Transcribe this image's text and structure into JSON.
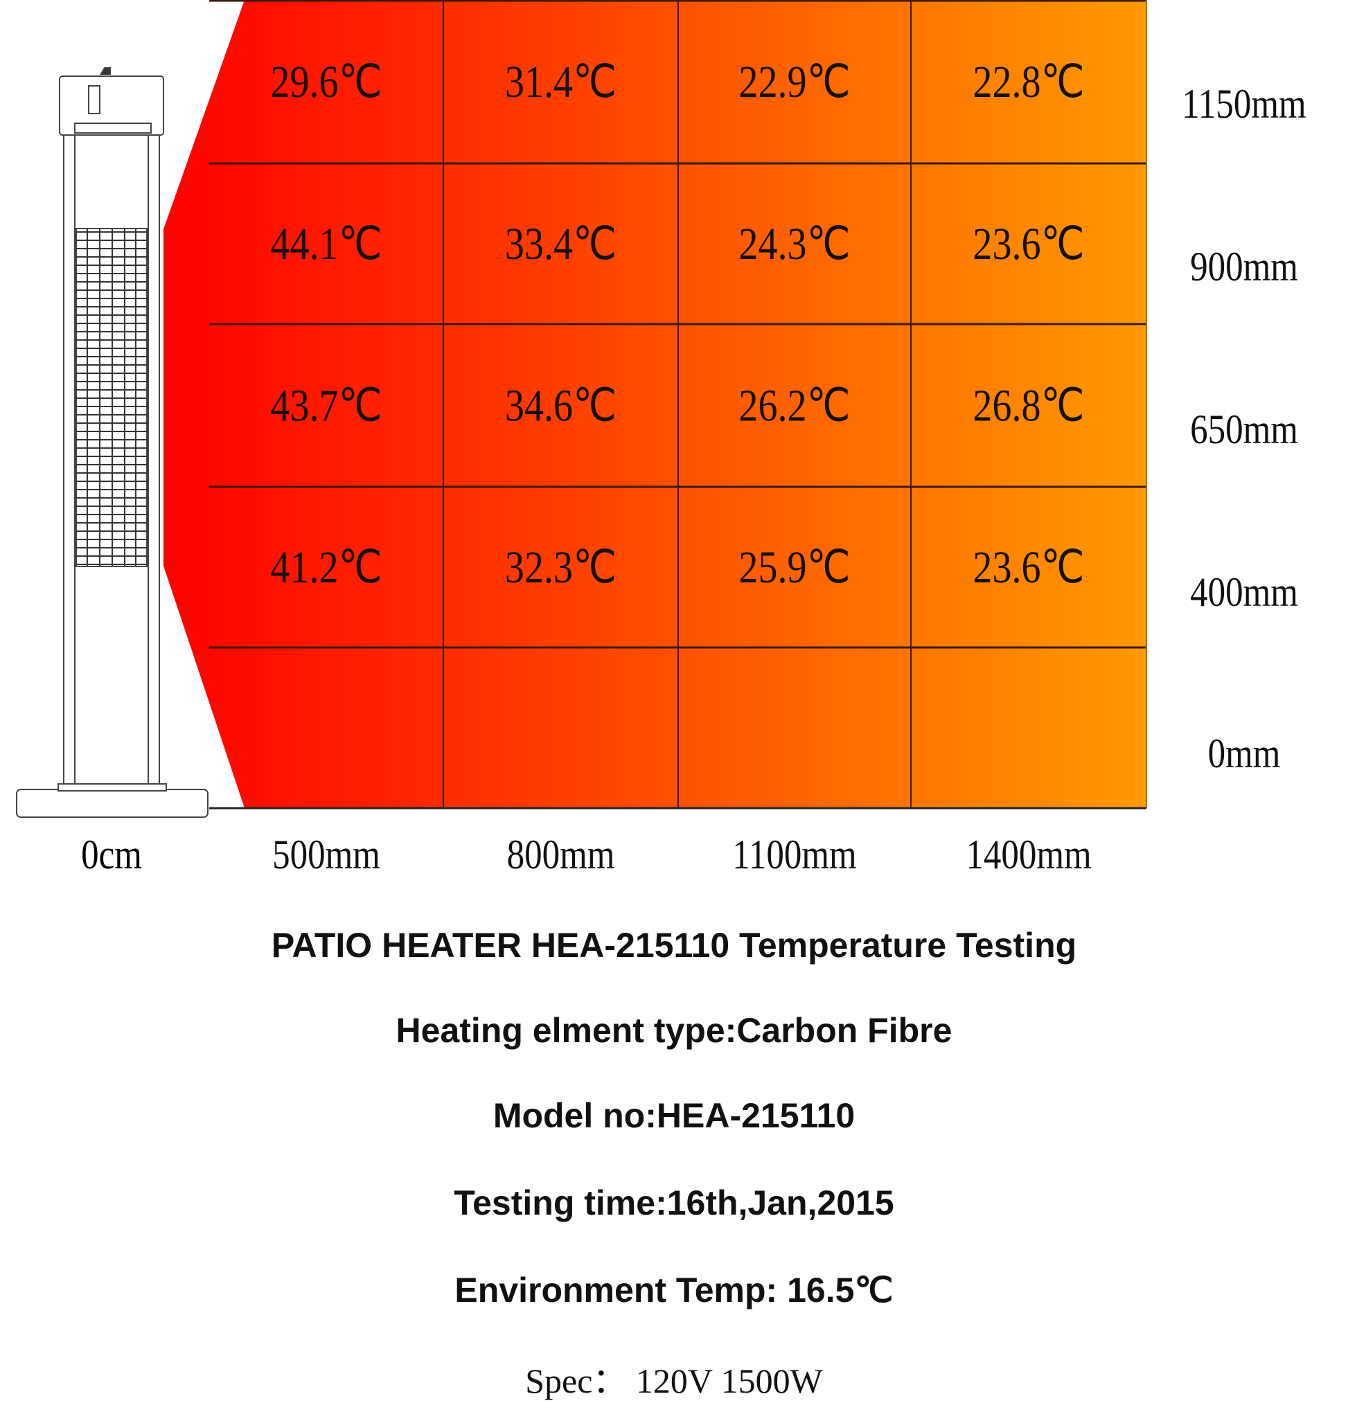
{
  "chart_data": {
    "type": "heatmap",
    "title": "PATIO HEATER HEA-215110 Temperature Testing",
    "x_origin_label": "0cm",
    "x_categories": [
      "500mm",
      "800mm",
      "1100mm",
      "1400mm"
    ],
    "y_categories": [
      "1150mm",
      "900mm",
      "650mm",
      "400mm",
      "0mm"
    ],
    "unit": "℃",
    "values": [
      [
        "29.6℃",
        "31.4℃",
        "22.9℃",
        "22.8℃"
      ],
      [
        "44.1℃",
        "33.4℃",
        "24.3℃",
        "23.6℃"
      ],
      [
        "43.7℃",
        "34.6℃",
        "26.2℃",
        "26.8℃"
      ],
      [
        "41.2℃",
        "32.3℃",
        "25.9℃",
        "23.6℃"
      ],
      [
        "",
        "",
        "",
        ""
      ]
    ],
    "numeric_values": [
      [
        29.6,
        31.4,
        22.9,
        22.8
      ],
      [
        44.1,
        33.4,
        24.3,
        23.6
      ],
      [
        43.7,
        34.6,
        26.2,
        26.8
      ],
      [
        41.2,
        32.3,
        25.9,
        23.6
      ]
    ],
    "gradient_colors": [
      "#ff0000",
      "#ff9a00"
    ],
    "grid_line_color": "#3a1a0a"
  },
  "info": {
    "title": "PATIO HEATER HEA-215110 Temperature Testing",
    "element_type": "Heating elment type:Carbon Fibre",
    "model": "Model no:HEA-215110",
    "testing_time": "Testing time:16th,Jan,2015",
    "env_temp": "Environment Temp: 16.5℃",
    "spec": "Spec： 120V 1500W"
  }
}
